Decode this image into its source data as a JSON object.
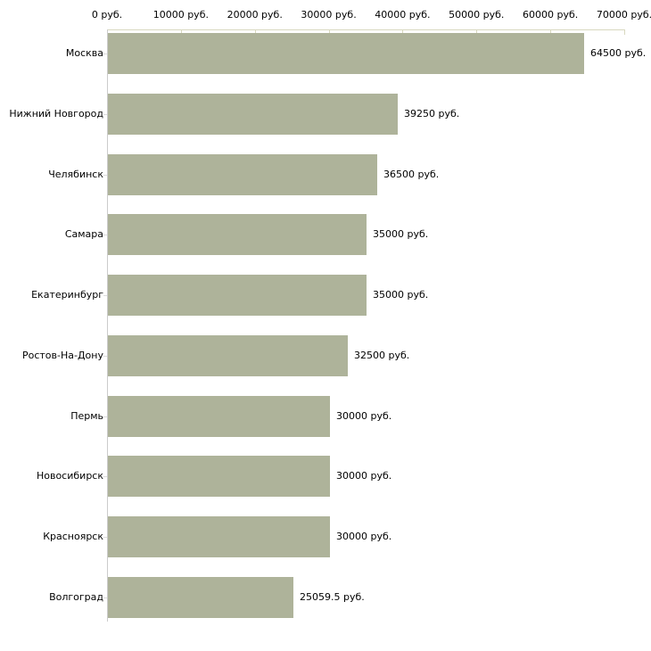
{
  "chart_data": {
    "type": "bar",
    "orientation": "horizontal",
    "xlim": [
      0,
      70000
    ],
    "x_ticks": [
      0,
      10000,
      20000,
      30000,
      40000,
      50000,
      60000,
      70000
    ],
    "x_tick_labels": [
      "0 руб.",
      "10000 руб.",
      "20000 руб.",
      "30000 руб.",
      "40000 руб.",
      "50000 руб.",
      "60000 руб.",
      "70000 руб."
    ],
    "categories": [
      "Москва",
      "Нижний Новгород",
      "Челябинск",
      "Самара",
      "Екатеринбург",
      "Ростов-На-Дону",
      "Пермь",
      "Новосибирск",
      "Красноярск",
      "Волгоград"
    ],
    "values": [
      64500,
      39250,
      36500,
      35000,
      35000,
      32500,
      30000,
      30000,
      30000,
      25059.5
    ],
    "value_labels": [
      "64500 руб.",
      "39250 руб.",
      "36500 руб.",
      "35000 руб.",
      "35000 руб.",
      "32500 руб.",
      "30000 руб.",
      "30000 руб.",
      "30000 руб.",
      "25059.5 руб."
    ],
    "grid": false,
    "legend": false,
    "colors": {
      "bar": "#aeb39a",
      "axis_line": "#d8d8bf",
      "tick_mark": "#d8d8bf",
      "left_axis": "#cccccc",
      "row_tick": "#dddddd",
      "text": "#000000",
      "background": "#ffffff"
    }
  }
}
